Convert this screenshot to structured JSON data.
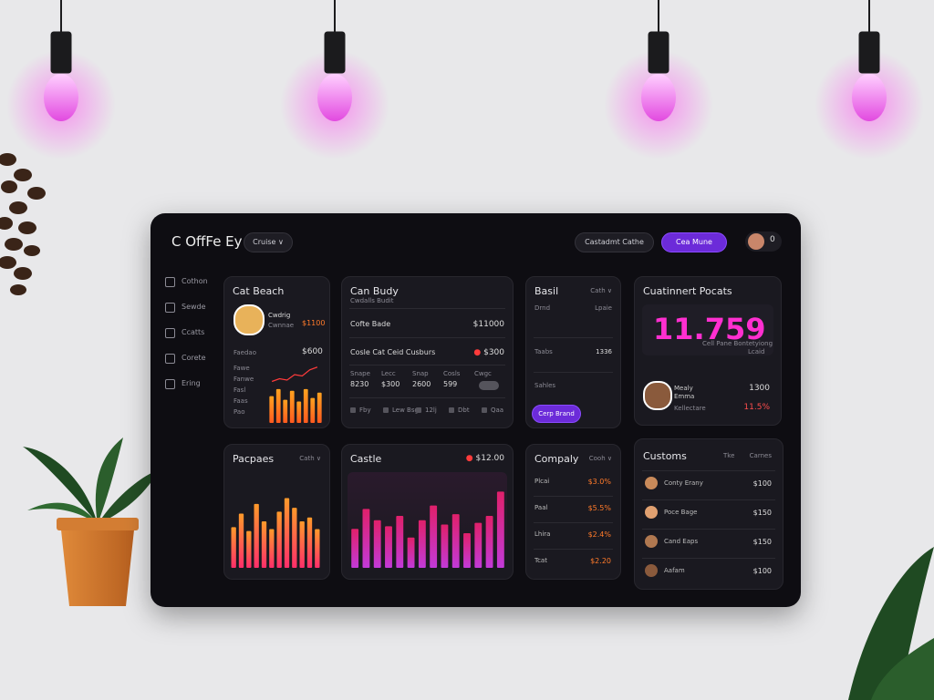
{
  "header": {
    "logo": "C OffFe Ey",
    "dropdown": "Cruise",
    "search": "Castadmt Cathe",
    "button": "Cea Mune",
    "badge": "0"
  },
  "sidebar": [
    "Cothon",
    "Sewde",
    "Ccatts",
    "Corete",
    "Ering"
  ],
  "beach": {
    "title": "Cat Beach",
    "name": "Cwdrig",
    "role": "Cwnnae",
    "amount": "$1100",
    "total_label": "Faedao",
    "total": "$600",
    "labels": [
      "Fawe",
      "Fanwe",
      "Fasl",
      "Faas",
      "Pao"
    ],
    "line": [
      10,
      14,
      12,
      20,
      18,
      27,
      31
    ],
    "line_ylim": [
      0,
      40
    ],
    "bars": [
      30,
      38,
      26,
      36,
      24,
      38,
      28,
      34
    ],
    "bars_ylim": [
      0,
      45
    ]
  },
  "budget": {
    "title": "Can Budy",
    "subtitle": "Cwdalls Budit",
    "row1_label": "Cofte Bade",
    "row1_value": "$11000",
    "row2_label": "Cosle Cat Ceid Cusburs",
    "row2_value": "$300",
    "cols": [
      "Snape",
      "Lecc",
      "Snap",
      "Cosls",
      "Cwgc"
    ],
    "col_values": [
      "8230",
      "$300",
      "2600",
      "599"
    ],
    "footer": [
      "Fby",
      "Lew Bsg",
      "12lj",
      "Dbt",
      "Qaa"
    ]
  },
  "basil": {
    "title": "Basil",
    "menu": "Cath",
    "row1": [
      "Drnd",
      "Lpaie"
    ],
    "row2": [
      "Taabs",
      "1336"
    ],
    "note": "Sahles",
    "button": "Cerp Brand"
  },
  "customer": {
    "title": "Cuatinnert Pocats",
    "big": "11.759",
    "caption": "Cell Pane Bontetyiong",
    "sub": "Lcaid",
    "first": "Mealy",
    "last": "Emma",
    "role": "Kellectare",
    "value": "1300",
    "change": "11.5%"
  },
  "purchases": {
    "title": "Pacpaes",
    "menu": "Cath",
    "bars": [
      42,
      56,
      38,
      66,
      48,
      40,
      58,
      72,
      62,
      48,
      52,
      40
    ],
    "ylim": [
      0,
      80
    ]
  },
  "castle": {
    "title": "Castle",
    "value": "$12.00",
    "bars": [
      45,
      68,
      55,
      48,
      60,
      35,
      55,
      72,
      50,
      62,
      40,
      52,
      60,
      88
    ],
    "ylim": [
      0,
      100
    ]
  },
  "company": {
    "title": "Compaly",
    "menu": "Cooh",
    "rows": [
      [
        "Plcai",
        "$3.0%"
      ],
      [
        "Paal",
        "$5.5%"
      ],
      [
        "Lhira",
        "$2.4%"
      ],
      [
        "Tcat",
        "$2.20"
      ]
    ]
  },
  "customs": {
    "title": "Customs",
    "col1": "Tke",
    "col2": "Carnes",
    "rows": [
      [
        "Conty Erany",
        "$100"
      ],
      [
        "Poce Bage",
        "$150"
      ],
      [
        "Cand Eaps",
        "$150"
      ],
      [
        "Aafam",
        "$100"
      ]
    ]
  }
}
